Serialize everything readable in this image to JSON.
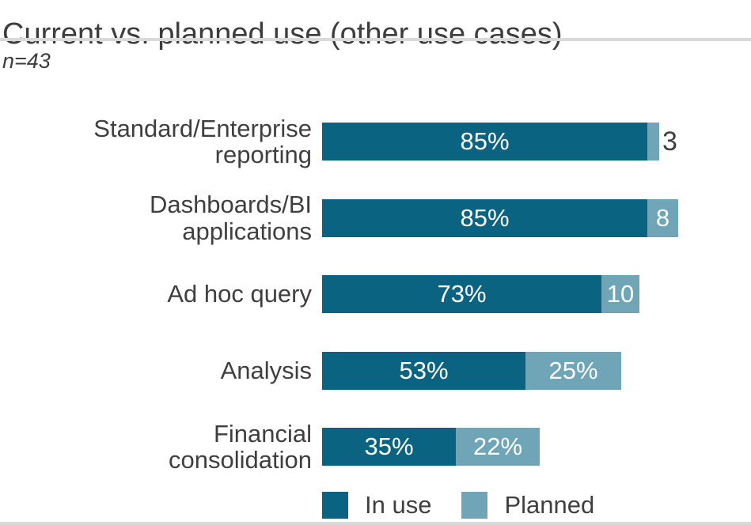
{
  "title": "Current vs. planned use (other use cases)",
  "sample_size": "n=43",
  "legend": {
    "in_use": "In use",
    "planned": "Planned"
  },
  "colors": {
    "in_use": "#0a6380",
    "planned": "#6fa5b6",
    "text": "#3f3f3f",
    "separator": "#d9d9d9",
    "bar_value_text": "#ffffff"
  },
  "chart_data": {
    "type": "bar",
    "orientation": "horizontal",
    "stacked": true,
    "title": "Current vs. planned use (other use cases)",
    "subtitle": "n=43",
    "x_max": 100,
    "grid": false,
    "legend_position": "bottom",
    "series_names": [
      "In use",
      "Planned"
    ],
    "categories": [
      "Standard/Enterprise reporting",
      "Dashboards/BI applications",
      "Ad hoc query",
      "Analysis",
      "Financial consolidation"
    ],
    "rows": [
      {
        "label_lines": [
          "Standard/Enterprise",
          "reporting"
        ],
        "in_use": 85,
        "in_use_label": "85%",
        "planned": 3,
        "planned_label": "3",
        "planned_label_outside": true
      },
      {
        "label_lines": [
          "Dashboards/BI",
          "applications"
        ],
        "in_use": 85,
        "in_use_label": "85%",
        "planned": 8,
        "planned_label": "8",
        "planned_label_outside": false
      },
      {
        "label_lines": [
          "Ad hoc query"
        ],
        "in_use": 73,
        "in_use_label": "73%",
        "planned": 10,
        "planned_label": "10",
        "planned_label_outside": false
      },
      {
        "label_lines": [
          "Analysis"
        ],
        "in_use": 53,
        "in_use_label": "53%",
        "planned": 25,
        "planned_label": "25%",
        "planned_label_outside": false
      },
      {
        "label_lines": [
          "Financial",
          "consolidation"
        ],
        "in_use": 35,
        "in_use_label": "35%",
        "planned": 22,
        "planned_label": "22%",
        "planned_label_outside": false
      }
    ]
  }
}
